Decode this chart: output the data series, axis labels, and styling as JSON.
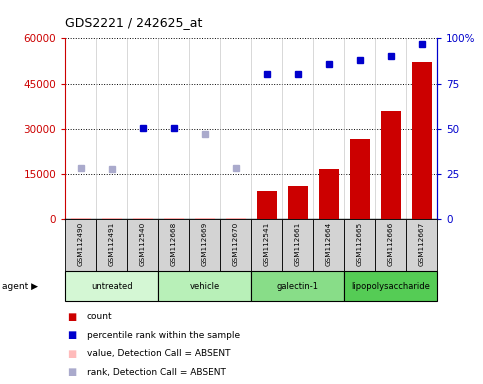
{
  "title": "GDS2221 / 242625_at",
  "samples": [
    "GSM112490",
    "GSM112491",
    "GSM112540",
    "GSM112668",
    "GSM112669",
    "GSM112670",
    "GSM112541",
    "GSM112661",
    "GSM112664",
    "GSM112665",
    "GSM112666",
    "GSM112667"
  ],
  "groups": [
    {
      "label": "untreated",
      "indices": [
        0,
        1,
        2
      ],
      "color": "#d4f7d4"
    },
    {
      "label": "vehicle",
      "indices": [
        3,
        4,
        5
      ],
      "color": "#b8f0b8"
    },
    {
      "label": "galectin-1",
      "indices": [
        6,
        7,
        8
      ],
      "color": "#88dd88"
    },
    {
      "label": "lipopolysaccharide",
      "indices": [
        9,
        10,
        11
      ],
      "color": "#55cc55"
    }
  ],
  "count_values": [
    300,
    350,
    350,
    400,
    280,
    250,
    9200,
    10800,
    16500,
    26500,
    36000,
    52000
  ],
  "count_absent": [
    true,
    true,
    true,
    true,
    true,
    true,
    false,
    false,
    false,
    false,
    false,
    false
  ],
  "rank_values": [
    28,
    27.5,
    50.5,
    50.5,
    47,
    28,
    80,
    80,
    86,
    88,
    90,
    97
  ],
  "rank_absent": [
    true,
    true,
    false,
    false,
    true,
    true,
    false,
    false,
    false,
    false,
    false,
    false
  ],
  "ylim_left": [
    0,
    60000
  ],
  "ylim_right": [
    0,
    100
  ],
  "yticks_left": [
    0,
    15000,
    30000,
    45000,
    60000
  ],
  "yticks_right": [
    0,
    25,
    50,
    75,
    100
  ],
  "left_axis_color": "#cc0000",
  "right_axis_color": "#0000cc",
  "bar_color": "#cc0000",
  "bar_absent_color": "#ffaaaa",
  "dot_color": "#0000cc",
  "dot_absent_color": "#aaaacc",
  "legend_items": [
    {
      "label": "count",
      "color": "#cc0000"
    },
    {
      "label": "percentile rank within the sample",
      "color": "#0000cc"
    },
    {
      "label": "value, Detection Call = ABSENT",
      "color": "#ffbbbb"
    },
    {
      "label": "rank, Detection Call = ABSENT",
      "color": "#aaaacc"
    }
  ],
  "agent_label": "agent",
  "background_color": "#ffffff",
  "table_bg": "#d3d3d3",
  "grid_color": "#000000"
}
